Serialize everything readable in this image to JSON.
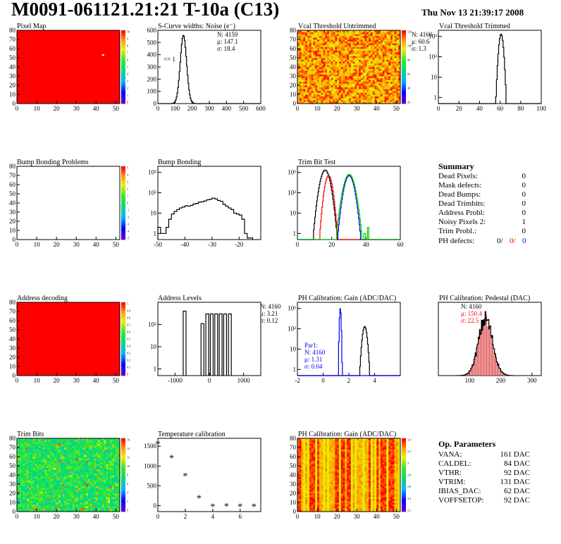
{
  "header": {
    "title": "M0091-061121.21:21 T-10a (C13)",
    "date": "Thu Nov 13 21:39:17 2008"
  },
  "colors": {
    "red": "#ff0000",
    "blue": "#0000ee",
    "green": "#00cc00",
    "black": "#000000"
  },
  "summary": {
    "title": "Summary",
    "rows": [
      {
        "label": "Dead Pixels:",
        "value": "0"
      },
      {
        "label": "Mask defects:",
        "value": "0"
      },
      {
        "label": "Dead Bumps:",
        "value": "0"
      },
      {
        "label": "Dead Trimbits:",
        "value": "0"
      },
      {
        "label": "Address Probl:",
        "value": "0"
      },
      {
        "label": "Noisy Pixels 2:",
        "value": "1"
      },
      {
        "label": "Trim Probl.:",
        "value": "0"
      }
    ],
    "ph_label": "PH defects:",
    "ph_values": [
      "0/",
      "0/",
      "0"
    ]
  },
  "op_params": {
    "title": "Op. Parameters",
    "rows": [
      {
        "label": "VANA:",
        "value": "161 DAC"
      },
      {
        "label": "CALDEL:",
        "value": "84 DAC"
      },
      {
        "label": "VTHR:",
        "value": "92 DAC"
      },
      {
        "label": "VTRIM:",
        "value": "131 DAC"
      },
      {
        "label": "IBIAS_DAC:",
        "value": "62 DAC"
      },
      {
        "label": "VOFFSETOP:",
        "value": "92 DAC"
      }
    ]
  },
  "chart_data": [
    {
      "id": "pixel-map",
      "type": "heatmap",
      "title": "Pixel Map",
      "xlim": [
        0,
        52
      ],
      "ylim": [
        0,
        80
      ],
      "xticks": [
        0,
        10,
        20,
        30,
        40,
        50
      ],
      "yticks": [
        0,
        10,
        20,
        30,
        40,
        50,
        60,
        70,
        80
      ],
      "fill": "uniform",
      "fill_color": "#ff0000",
      "palette": "rainbow",
      "palette_labels": [
        "10",
        "9",
        "8",
        "7",
        "6",
        "5",
        "4",
        "3",
        "2",
        "1",
        "0"
      ],
      "outliers": [
        {
          "x": 43,
          "y": 53,
          "color": "#ffffff"
        }
      ]
    },
    {
      "id": "scurve-noise",
      "type": "line",
      "title": "S-Curve widths: Noise (e⁻)",
      "xlim": [
        0,
        600
      ],
      "ylim": [
        0,
        600
      ],
      "xticks": [
        0,
        100,
        200,
        300,
        400,
        500,
        600
      ],
      "yticks": [
        0,
        100,
        200,
        300,
        400,
        500,
        600
      ],
      "stats": [
        "N: 4159",
        "μ: 147.1",
        "σ: 18.4"
      ],
      "annotation": "<= 1",
      "peak": {
        "mean": 147,
        "sigma": 18.4,
        "height": 560
      }
    },
    {
      "id": "vcal-untrimmed",
      "type": "heatmap",
      "title": "Vcal Threshold Untrimmed",
      "xlim": [
        0,
        52
      ],
      "ylim": [
        0,
        80
      ],
      "xticks": [
        0,
        10,
        20,
        30,
        40,
        50
      ],
      "yticks": [
        0,
        10,
        20,
        30,
        40,
        50,
        60,
        70,
        80
      ],
      "fill": "noise",
      "palette": "rainbow",
      "palette_labels": [
        "120",
        "100",
        "80",
        "60",
        "40",
        "20"
      ]
    },
    {
      "id": "vcal-trimmed",
      "type": "line",
      "title": "Vcal Threshold Trimmed",
      "log_y": true,
      "xlim": [
        0,
        100
      ],
      "ylim": [
        0.5,
        2000
      ],
      "xticks": [
        0,
        20,
        40,
        60,
        80,
        100
      ],
      "ytick_labels": [
        "1",
        "10",
        "10²",
        "10³"
      ],
      "stats": [
        "N: 4160",
        "μ: 60.6",
        "σ:  1.3"
      ],
      "peak": {
        "mean": 60.6,
        "sigma": 1.3,
        "height": 1300
      }
    },
    {
      "id": "bump-bonding-problems",
      "type": "heatmap",
      "title": "Bump Bonding Problems",
      "xlim": [
        0,
        52
      ],
      "ylim": [
        0,
        80
      ],
      "xticks": [
        0,
        10,
        20,
        30,
        40,
        50
      ],
      "yticks": [
        0,
        10,
        20,
        30,
        40,
        50,
        60,
        70,
        80
      ],
      "fill": "empty",
      "palette": "rainbow",
      "palette_labels": [
        "5",
        "4",
        "3",
        "2",
        "1",
        "0",
        "-1",
        "-2",
        "-3",
        "-4",
        "-5"
      ]
    },
    {
      "id": "bump-bonding",
      "type": "line",
      "title": "Bump Bonding",
      "log_y": true,
      "xlim": [
        -50,
        -12
      ],
      "ylim": [
        0.5,
        2000
      ],
      "xticks": [
        -50,
        -40,
        -30,
        -20
      ],
      "ytick_labels": [
        "1",
        "10",
        "10²",
        "10³"
      ],
      "x": [
        -50,
        -49,
        -48,
        -47,
        -46,
        -45,
        -44,
        -43,
        -42,
        -41,
        -40,
        -39,
        -38,
        -37,
        -36,
        -35,
        -34,
        -33,
        -32,
        -31,
        -30,
        -29,
        -28,
        -27,
        -26,
        -25,
        -24,
        -23,
        -22,
        -21,
        -20,
        -19,
        -18,
        -17,
        -16
      ],
      "y": [
        2,
        1,
        1,
        2,
        5,
        9,
        12,
        15,
        18,
        20,
        23,
        22,
        24,
        28,
        30,
        35,
        36,
        40,
        45,
        48,
        55,
        50,
        42,
        38,
        27,
        22,
        18,
        15,
        10,
        9,
        8,
        5,
        1,
        0.6,
        0.6
      ]
    },
    {
      "id": "trim-bit-test",
      "type": "line",
      "title": "Trim Bit Test",
      "log_y": true,
      "xlim": [
        0,
        60
      ],
      "ylim": [
        0.5,
        2000
      ],
      "xticks": [
        0,
        20,
        40,
        60
      ],
      "ytick_labels": [
        "1",
        "10",
        "10²",
        "10³"
      ],
      "series": [
        {
          "color": "#000000",
          "mean": 16,
          "sigma": 1.8,
          "height": 1300
        },
        {
          "color": "#ff0000",
          "mean": 18,
          "sigma": 1.4,
          "height": 700
        },
        {
          "color": "#0000ee",
          "mean": 30,
          "sigma": 1.8,
          "height": 700
        },
        {
          "color": "#00cc00",
          "mean": 30,
          "sigma": 2.0,
          "height": 800,
          "tail": [
            {
              "x": 36,
              "y": 1
            },
            {
              "x": 39,
              "y": 1
            },
            {
              "x": 41,
              "y": 2
            }
          ]
        }
      ]
    },
    {
      "id": "address-decoding",
      "type": "heatmap",
      "title": "Address decoding",
      "xlim": [
        0,
        52
      ],
      "ylim": [
        0,
        80
      ],
      "xticks": [
        0,
        10,
        20,
        30,
        40,
        50
      ],
      "yticks": [
        0,
        10,
        20,
        30,
        40,
        50,
        60,
        70,
        80
      ],
      "fill": "uniform",
      "fill_color": "#ff0000",
      "palette": "rainbow",
      "palette_labels": [
        "1",
        "0.9",
        "0.8",
        "0.7",
        "0.6",
        "0.5",
        "0.4",
        "0.3",
        "0.2",
        "0.1",
        "0"
      ]
    },
    {
      "id": "address-levels",
      "type": "line",
      "title": "Address Levels",
      "log_y": true,
      "xlim": [
        -1500,
        1500
      ],
      "ylim": [
        0.5,
        1000
      ],
      "xticks": [
        -1000,
        0,
        1000
      ],
      "ytick_labels": [
        "1",
        "10",
        "10²"
      ],
      "peaks": [
        {
          "x": -720,
          "height": 400
        },
        {
          "x": -200,
          "height": 110
        },
        {
          "x": -60,
          "height": 300
        },
        {
          "x": 70,
          "height": 300
        },
        {
          "x": 200,
          "height": 300
        },
        {
          "x": 330,
          "height": 300
        },
        {
          "x": 460,
          "height": 300
        },
        {
          "x": 600,
          "height": 300
        }
      ]
    },
    {
      "id": "ph-gain",
      "type": "line",
      "title": "PH Calibration: Gain (ADC/DAC)",
      "log_y": true,
      "xlim": [
        -2,
        6
      ],
      "ylim": [
        0.5,
        2000
      ],
      "xticks": [
        -2,
        0,
        2,
        4
      ],
      "ytick_labels": [
        "1",
        "10",
        "10²",
        "10³"
      ],
      "stats": [
        "N: 4160",
        "μ: 3.21",
        "σ: 0.12"
      ],
      "stats_par1": [
        "Par1:",
        "N: 4160",
        "μ: 1.31",
        "σ: 0.04"
      ],
      "series": [
        {
          "color": "#000000",
          "mean": 3.21,
          "sigma": 0.12,
          "height": 130
        },
        {
          "color": "#0000ee",
          "mean": 1.31,
          "sigma": 0.04,
          "height": 1000
        }
      ]
    },
    {
      "id": "ph-pedestal",
      "type": "line",
      "title": "PH Calibration: Pedestal (DAC)",
      "xlim": [
        0,
        330
      ],
      "ylim": [
        0,
        110
      ],
      "xticks": [
        100,
        200,
        300
      ],
      "stats": [
        "N: 4160",
        "μ: 150.4",
        "σ: 22.5"
      ],
      "peak": {
        "mean": 150.4,
        "sigma": 22.5,
        "height": 85
      }
    },
    {
      "id": "trim-bits",
      "type": "heatmap",
      "title": "Trim Bits",
      "xlim": [
        0,
        52
      ],
      "ylim": [
        0,
        80
      ],
      "xticks": [
        0,
        10,
        20,
        30,
        40,
        50
      ],
      "yticks": [
        0,
        10,
        20,
        30,
        40,
        50,
        60,
        70,
        80
      ],
      "fill": "noise-green",
      "palette": "rainbow",
      "palette_labels": [
        "16",
        "14",
        "12",
        "10",
        "8",
        "6",
        "4",
        "2",
        "0"
      ]
    },
    {
      "id": "temperature-calibration",
      "type": "scatter",
      "title": "Temperature calibration",
      "xlim": [
        0,
        7.5
      ],
      "ylim": [
        -150,
        1700
      ],
      "xticks": [
        0,
        2,
        4,
        6
      ],
      "yticks": [
        0,
        500,
        1000,
        1500
      ],
      "x": [
        0,
        1,
        2,
        3,
        4,
        5,
        6,
        7
      ],
      "y": [
        1570,
        1210,
        760,
        200,
        -20,
        -10,
        -20,
        -20
      ]
    },
    {
      "id": "ph-gain-map",
      "type": "heatmap",
      "title": "PH Calibration: Gain (ADC/DAC)",
      "xlim": [
        0,
        52
      ],
      "ylim": [
        0,
        80
      ],
      "xticks": [
        0,
        10,
        20,
        30,
        40,
        50
      ],
      "yticks": [
        0,
        10,
        20,
        30,
        40,
        50,
        60,
        70,
        80
      ],
      "fill": "columns",
      "palette": "rainbow",
      "palette_labels": [
        "3.4",
        "3.2",
        "3",
        "2.8",
        "2.6",
        "2.4",
        "2.2"
      ]
    }
  ]
}
